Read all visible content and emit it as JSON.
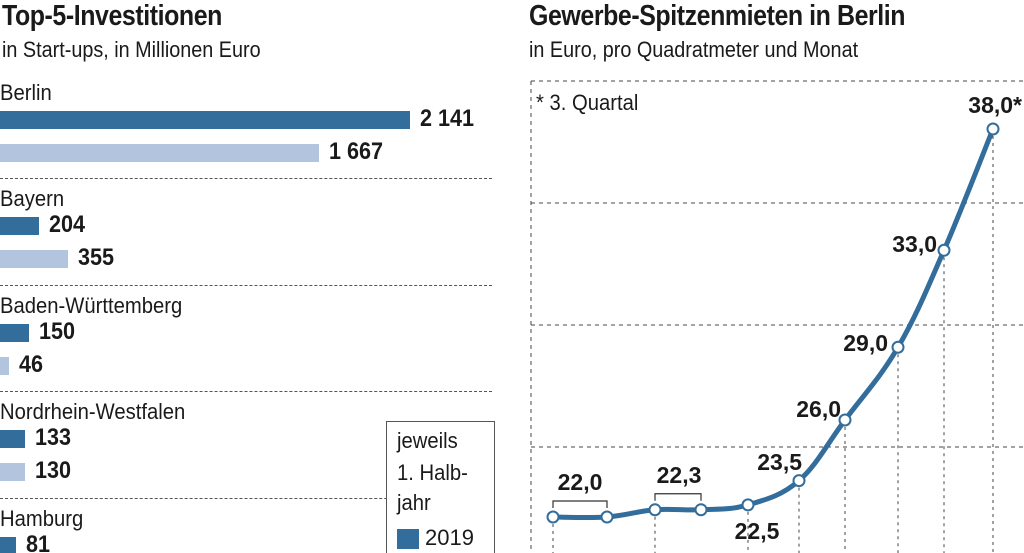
{
  "left": {
    "title": "Top-5-Investitionen",
    "subtitle": "in Start-ups, in Millionen Euro",
    "legend": {
      "line1": "jeweils",
      "line2": "1. Halb-",
      "line3": "jahr",
      "year_2019": "2019"
    }
  },
  "right": {
    "title": "Gewerbe-Spitzenmieten in Berlin",
    "subtitle": "in Euro, pro Quadratmeter und Monat",
    "footnote": "* 3. Quartal"
  },
  "colors": {
    "bar_2019": "#336d9b",
    "bar_2018": "#b3c4de",
    "line": "#336d9b"
  },
  "chart_data": [
    {
      "type": "bar",
      "orientation": "horizontal",
      "title": "Top-5-Investitionen",
      "subtitle": "in Start-ups, in Millionen Euro",
      "categories": [
        "Berlin",
        "Bayern",
        "Baden-Württemberg",
        "Nordrhein-Westfalen",
        "Hamburg"
      ],
      "series": [
        {
          "name": "2019",
          "values": [
            2141,
            204,
            150,
            133,
            81
          ],
          "labels": [
            "2 141",
            "204",
            "150",
            "133",
            "81"
          ]
        },
        {
          "values": [
            1667,
            355,
            46,
            130,
            null
          ],
          "labels": [
            "1 667",
            "355",
            "46",
            "130",
            ""
          ]
        }
      ],
      "xlim": [
        0,
        2250
      ]
    },
    {
      "type": "line",
      "title": "Gewerbe-Spitzenmieten in Berlin",
      "subtitle": "in Euro, pro Quadratmeter und Monat",
      "values": [
        22.0,
        22.0,
        22.3,
        22.3,
        22.5,
        23.5,
        26.0,
        29.0,
        33.0,
        38.0
      ],
      "labels": [
        "22,0",
        "",
        "22,3",
        "",
        "22,5",
        "23,5",
        "26,0",
        "29,0",
        "33,0",
        "38,0*"
      ],
      "ylim": [
        19,
        40
      ],
      "grid": true
    }
  ]
}
